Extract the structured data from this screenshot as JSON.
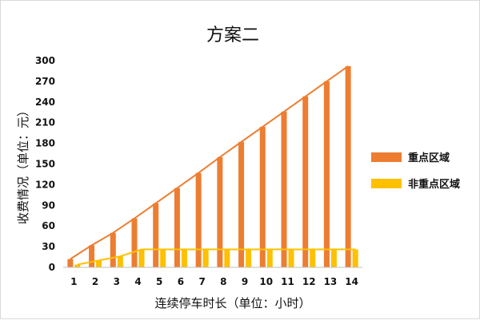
{
  "chart_data": {
    "type": "bar",
    "title": "方案二",
    "xlabel": "连续停车时长（单位：小时）",
    "ylabel": "收费情况（单位：元）",
    "categories": [
      "1",
      "2",
      "3",
      "4",
      "5",
      "6",
      "7",
      "8",
      "9",
      "10",
      "11",
      "12",
      "13",
      "14"
    ],
    "ylim": [
      0,
      300
    ],
    "yticks": [
      0,
      30,
      60,
      90,
      120,
      150,
      180,
      210,
      240,
      270,
      300
    ],
    "grid": false,
    "legend_position": "right",
    "series": [
      {
        "name": "重点区域",
        "color": "#ED7D31",
        "values": [
          12,
          32,
          50,
          71,
          93,
          115,
          137,
          160,
          182,
          204,
          226,
          248,
          270,
          292
        ],
        "trendline": true
      },
      {
        "name": "非重点区域",
        "color": "#FFC000",
        "values": [
          4,
          10,
          16,
          26,
          26,
          26,
          26,
          26,
          26,
          26,
          26,
          26,
          26,
          26
        ],
        "trendline": true
      }
    ]
  }
}
